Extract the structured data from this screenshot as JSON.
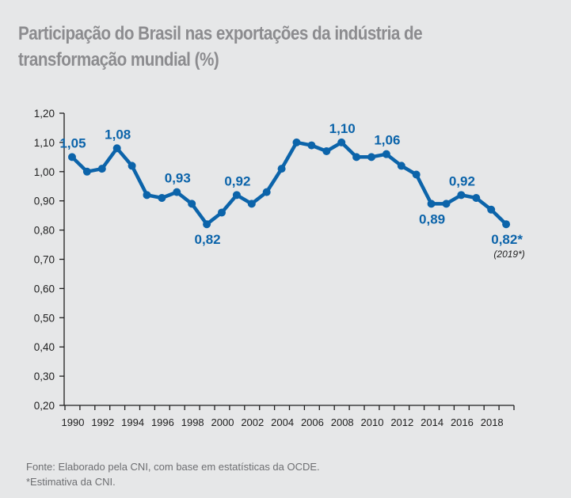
{
  "chart_data": {
    "type": "line",
    "title": "Participação do Brasil nas exportações da indústria de transformação mundial (%)",
    "title_lines": [
      "Participação do Brasil nas exportações da indústria de",
      "transformação mundial (%)"
    ],
    "xlabel": "",
    "ylabel": "",
    "ylim": [
      0.2,
      1.2
    ],
    "grid": false,
    "legend": "none",
    "yticks": [
      1.2,
      1.1,
      1.0,
      0.9,
      0.8,
      0.7,
      0.6,
      0.5,
      0.4,
      0.3,
      0.2
    ],
    "ytick_labels": [
      "1,20",
      "1,10",
      "1,00",
      "0,90",
      "0,80",
      "0,70",
      "0,60",
      "0,50",
      "0,40",
      "0,30",
      "0,20"
    ],
    "xticks": [
      1990,
      1992,
      1994,
      1996,
      1998,
      2000,
      2002,
      2004,
      2006,
      2008,
      2010,
      2012,
      2014,
      2016,
      2018
    ],
    "xtick_labels": [
      "1990",
      "1992",
      "1994",
      "1996",
      "1998",
      "2000",
      "2002",
      "2004",
      "2006",
      "2008",
      "2010",
      "2012",
      "2014",
      "2016",
      "2018"
    ],
    "x": [
      1990,
      1991,
      1992,
      1993,
      1994,
      1995,
      1996,
      1997,
      1998,
      1999,
      2000,
      2001,
      2002,
      2003,
      2004,
      2005,
      2006,
      2007,
      2008,
      2009,
      2010,
      2011,
      2012,
      2013,
      2014,
      2015,
      2016,
      2017,
      2018,
      2019
    ],
    "series": [
      {
        "name": "Participação do Brasil (%)",
        "color": "#0c64aa",
        "values": [
          1.05,
          1.0,
          1.01,
          1.08,
          1.02,
          0.92,
          0.91,
          0.93,
          0.89,
          0.82,
          0.86,
          0.92,
          0.89,
          0.93,
          1.01,
          1.1,
          1.09,
          1.07,
          1.1,
          1.05,
          1.05,
          1.06,
          1.02,
          0.99,
          0.89,
          0.89,
          0.92,
          0.91,
          0.87,
          0.82
        ]
      }
    ],
    "annotations": [
      {
        "x": 1990,
        "text": "1,05",
        "pos": "above"
      },
      {
        "x": 1993,
        "text": "1,08",
        "pos": "above"
      },
      {
        "x": 1997,
        "text": "0,93",
        "pos": "above"
      },
      {
        "x": 1999,
        "text": "0,82",
        "pos": "below"
      },
      {
        "x": 2001,
        "text": "0,92",
        "pos": "above"
      },
      {
        "x": 2008,
        "text": "1,10",
        "pos": "above"
      },
      {
        "x": 2011,
        "text": "1,06",
        "pos": "above"
      },
      {
        "x": 2014,
        "text": "0,89",
        "pos": "below"
      },
      {
        "x": 2016,
        "text": "0,92",
        "pos": "above"
      },
      {
        "x": 2019,
        "text": "0,82*",
        "pos": "below",
        "note": "(2019*)"
      }
    ]
  },
  "footer": {
    "source": "Fonte: Elaborado pela CNI, com base em estatísticas da OCDE.",
    "note": "*Estimativa da CNI."
  }
}
